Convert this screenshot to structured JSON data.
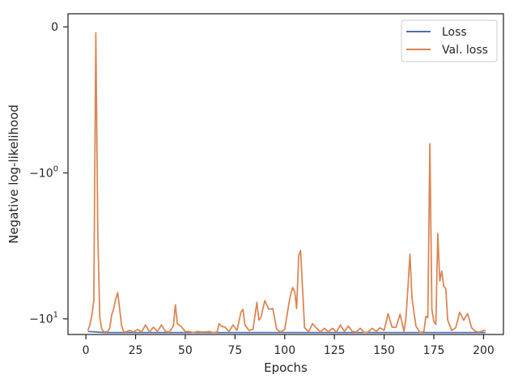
{
  "chart_data": {
    "type": "line",
    "title": "",
    "xlabel": "Epochs",
    "ylabel": "Negative log-likelihood",
    "xlim": [
      -9,
      210
    ],
    "x_ticks": [
      0,
      25,
      50,
      75,
      100,
      125,
      150,
      175,
      200
    ],
    "y_scale": "symlog",
    "y_ticks": [
      {
        "value": 0,
        "label": "0"
      },
      {
        "value": -1,
        "label": "-10^0"
      },
      {
        "value": -10,
        "label": "-10^1"
      }
    ],
    "grid": false,
    "legend": {
      "position": "top-right"
    },
    "series": [
      {
        "name": "Loss",
        "color": "#4c72b0",
        "x": [
          1,
          10,
          20,
          40,
          60,
          80,
          100,
          120,
          140,
          160,
          180,
          201
        ],
        "y": [
          -12.2,
          -12.4,
          -12.4,
          -12.4,
          -12.4,
          -12.4,
          -12.4,
          -12.4,
          -12.4,
          -12.4,
          -12.4,
          -12.4
        ]
      },
      {
        "name": "Val. loss",
        "color": "#dd8452",
        "x": [
          1,
          2,
          3,
          4,
          5,
          6,
          7,
          8,
          9,
          10,
          11,
          12,
          13,
          14,
          15,
          16,
          17,
          18,
          19,
          20,
          22,
          24,
          26,
          28,
          30,
          32,
          34,
          36,
          38,
          40,
          42,
          44,
          45,
          46,
          48,
          50,
          52,
          54,
          56,
          58,
          60,
          62,
          64,
          66,
          67,
          68,
          70,
          72,
          74,
          76,
          78,
          79,
          80,
          82,
          84,
          86,
          87,
          88,
          90,
          92,
          94,
          96,
          98,
          100,
          102,
          103,
          104,
          105,
          106,
          107,
          108,
          110,
          112,
          114,
          116,
          118,
          120,
          122,
          124,
          126,
          128,
          130,
          132,
          134,
          136,
          138,
          140,
          142,
          144,
          146,
          148,
          150,
          152,
          154,
          156,
          158,
          160,
          161,
          162,
          163,
          164,
          166,
          168,
          170,
          171,
          172,
          173,
          174,
          175,
          176,
          177,
          178,
          179,
          180,
          181,
          182,
          184,
          186,
          188,
          190,
          192,
          194,
          196,
          198,
          200,
          201
        ],
        "y": [
          -12.0,
          -11.0,
          -9.5,
          -7.5,
          -0.04,
          -2.5,
          -9.8,
          -11.8,
          -12.2,
          -12.3,
          -12.2,
          -11.6,
          -9.4,
          -8.5,
          -7.3,
          -6.6,
          -8.6,
          -11.2,
          -12.2,
          -12.3,
          -12.0,
          -12.3,
          -11.8,
          -12.3,
          -11.0,
          -12.3,
          -11.4,
          -12.2,
          -11.0,
          -12.2,
          -12.3,
          -11.2,
          -8.0,
          -10.8,
          -11.3,
          -12.2,
          -12.2,
          -12.4,
          -12.2,
          -12.3,
          -12.3,
          -12.2,
          -12.4,
          -12.3,
          -10.8,
          -11.2,
          -11.4,
          -12.2,
          -11.0,
          -12.0,
          -9.0,
          -8.6,
          -11.0,
          -12.0,
          -11.8,
          -7.7,
          -10.2,
          -9.8,
          -7.5,
          -8.6,
          -8.5,
          -11.8,
          -12.3,
          -11.8,
          -8.0,
          -6.8,
          -6.1,
          -6.5,
          -8.5,
          -3.7,
          -3.4,
          -11.5,
          -12.2,
          -10.8,
          -11.6,
          -12.3,
          -11.6,
          -12.3,
          -11.6,
          -12.3,
          -11.0,
          -12.2,
          -11.2,
          -12.2,
          -12.3,
          -11.6,
          -12.4,
          -12.3,
          -11.6,
          -12.2,
          -11.5,
          -12.0,
          -9.2,
          -11.4,
          -11.4,
          -9.3,
          -12.2,
          -9.8,
          -6.0,
          -3.6,
          -7.2,
          -11.2,
          -12.4,
          -12.2,
          -9.6,
          -9.8,
          -0.8,
          -8.6,
          -10.4,
          -10.9,
          -2.6,
          -5.5,
          -4.7,
          -6.0,
          -6.2,
          -10.2,
          -12.0,
          -11.5,
          -9.0,
          -10.2,
          -9.2,
          -11.5,
          -12.2,
          -12.3,
          -12.0,
          -12.0
        ]
      }
    ]
  }
}
